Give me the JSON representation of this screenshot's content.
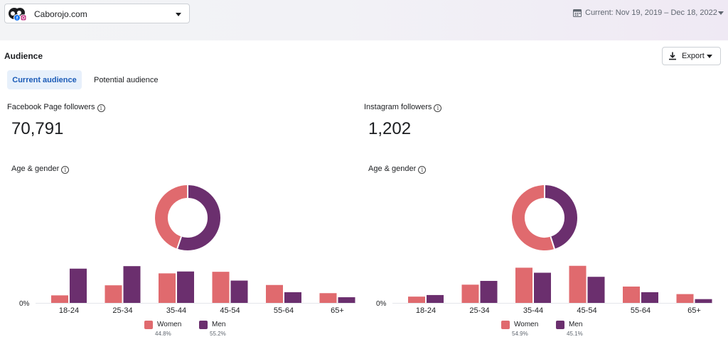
{
  "account": {
    "name": "Caborojo.com"
  },
  "date_range": {
    "label": "Current: Nov 19, 2019 – Dec 18, 2022"
  },
  "section": {
    "title": "Audience"
  },
  "export": {
    "label": "Export"
  },
  "tabs": [
    {
      "label": "Current audience",
      "active": true
    },
    {
      "label": "Potential audience",
      "active": false
    }
  ],
  "colors": {
    "women": "#e06a6e",
    "men": "#6b2f6e",
    "tab_active_bg": "#e7f0fb",
    "tab_active_text": "#1b5bb7"
  },
  "icons": {
    "calendar": "calendar-icon",
    "download": "download-icon",
    "info": "info-icon",
    "facebook": "facebook-icon",
    "instagram": "instagram-icon"
  },
  "panels": [
    {
      "label": "Facebook Page followers",
      "value": "70,791",
      "sub_label": "Age & gender",
      "chart_data": {
        "type": "bar",
        "categories": [
          "18-24",
          "25-34",
          "35-44",
          "45-54",
          "55-64",
          "65+"
        ],
        "series": [
          {
            "name": "Women",
            "values": [
              2.4,
              5.6,
              9.4,
              9.9,
              5.7,
              3.1
            ]
          },
          {
            "name": "Men",
            "values": [
              10.9,
              11.7,
              10.0,
              7.1,
              3.4,
              1.8
            ]
          }
        ],
        "y_tick_label": "0%",
        "ylim": [
          0,
          14
        ],
        "donut": {
          "values": [
            44.8,
            55.2
          ],
          "labels": [
            "Women",
            "Men"
          ]
        },
        "legend": [
          {
            "name": "Women",
            "pct": "44.8%"
          },
          {
            "name": "Men",
            "pct": "55.2%"
          }
        ]
      }
    },
    {
      "label": "Instagram followers",
      "value": "1,202",
      "sub_label": "Age & gender",
      "chart_data": {
        "type": "bar",
        "categories": [
          "18-24",
          "25-34",
          "35-44",
          "45-54",
          "55-64",
          "65+"
        ],
        "series": [
          {
            "name": "Women",
            "values": [
              2.0,
              5.8,
              11.2,
              11.8,
              5.2,
              2.8
            ]
          },
          {
            "name": "Men",
            "values": [
              2.5,
              7.0,
              9.6,
              8.3,
              3.4,
              1.2
            ]
          }
        ],
        "y_tick_label": "0%",
        "ylim": [
          0,
          14
        ],
        "donut": {
          "values": [
            54.9,
            45.1
          ],
          "labels": [
            "Women",
            "Men"
          ]
        },
        "legend": [
          {
            "name": "Women",
            "pct": "54.9%"
          },
          {
            "name": "Men",
            "pct": "45.1%"
          }
        ]
      }
    }
  ]
}
